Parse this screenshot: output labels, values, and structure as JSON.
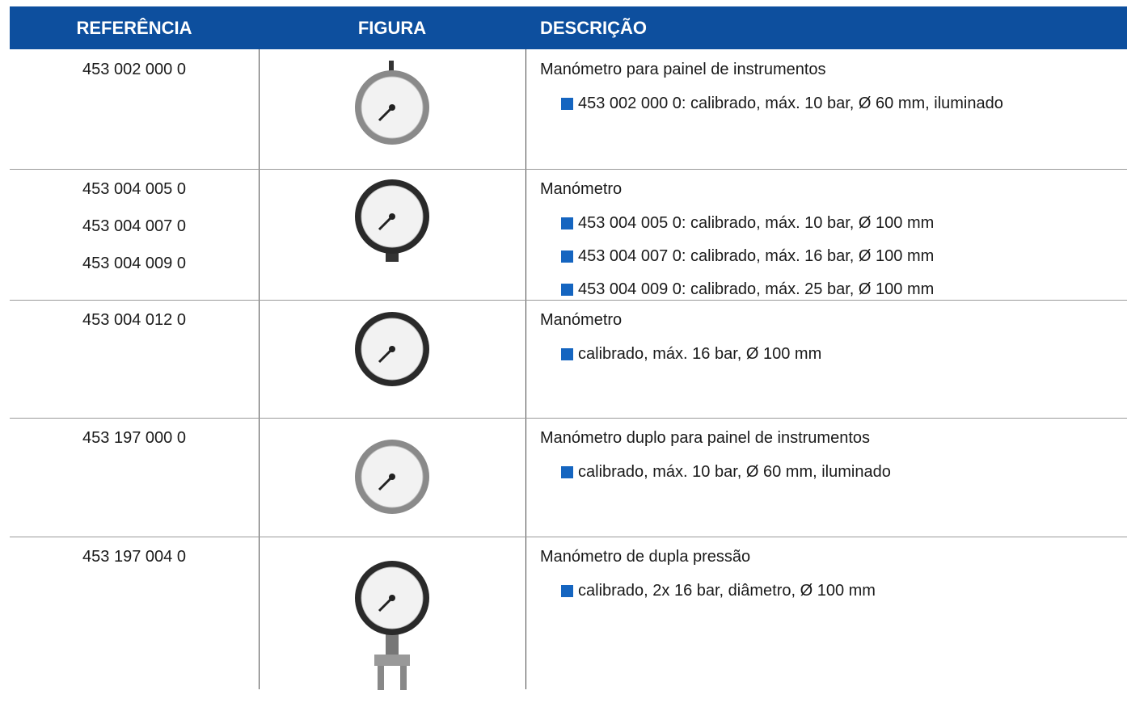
{
  "table": {
    "header": [
      "REFERÊNCIA",
      "FIGURA",
      "DESCRIÇÃO"
    ],
    "rows": [
      {
        "references": [
          "453 002 000 0"
        ],
        "title": "Manómetro para painel de instrumentos",
        "bullets": [
          "453 002 000 0: calibrado, máx. 10 bar, Ø 60 mm, iluminado"
        ]
      },
      {
        "references": [
          "453 004 005 0",
          "453 004 007 0",
          "453 004 009 0"
        ],
        "title": "Manómetro",
        "bullets": [
          "453 004 005 0: calibrado, máx. 10 bar, Ø 100 mm",
          "453 004 007 0: calibrado, máx. 16 bar, Ø 100 mm",
          "453 004 009 0: calibrado, máx. 25 bar, Ø 100 mm"
        ]
      },
      {
        "references": [
          "453 004 012 0"
        ],
        "title": "Manómetro",
        "bullets": [
          "calibrado, máx. 16 bar, Ø 100 mm"
        ]
      },
      {
        "references": [
          "453 197 000 0"
        ],
        "title": "Manómetro duplo para painel de instrumentos",
        "bullets": [
          "calibrado, máx. 10 bar, Ø 60 mm, iluminado"
        ]
      },
      {
        "references": [
          "453 197 004 0"
        ],
        "title": "Manómetro de dupla pressão",
        "bullets": [
          "calibrado, 2x 16 bar, diâmetro, Ø 100 mm"
        ]
      }
    ]
  }
}
